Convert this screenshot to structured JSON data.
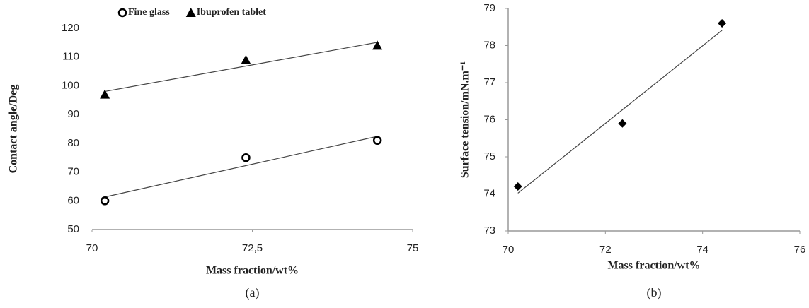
{
  "chart_data": [
    {
      "type": "scatter",
      "caption": "(a)",
      "xlabel": "Mass fraction/wt%",
      "ylabel": "Contact angle/Deg",
      "xlim": [
        70,
        75
      ],
      "xticks": [
        70,
        {
          "value": 72.5,
          "label": "72,5"
        },
        75
      ],
      "ylim": [
        50,
        120
      ],
      "yticks": [
        50,
        60,
        70,
        80,
        90,
        100,
        110,
        120
      ],
      "trendline": true,
      "left_axis": false,
      "series": [
        {
          "name": "Fine glass",
          "color": "#000000",
          "marker": "circle-open",
          "x": [
            70.2,
            72.4,
            74.45
          ],
          "values": [
            60,
            75,
            81
          ]
        },
        {
          "name": "Ibuprofen tablet",
          "color": "#000000",
          "marker": "triangle",
          "x": [
            70.2,
            72.4,
            74.45
          ],
          "values": [
            97,
            109,
            114
          ]
        }
      ]
    },
    {
      "type": "scatter",
      "caption": "(b)",
      "xlabel": "Mass fraction/wt%",
      "ylabel": "Surface tension/mN.m⁻¹",
      "xlim": [
        70,
        76
      ],
      "xticks": [
        70,
        72,
        74,
        76
      ],
      "ylim": [
        73,
        79
      ],
      "yticks": [
        73,
        74,
        75,
        76,
        77,
        78,
        79
      ],
      "trendline": true,
      "left_axis": true,
      "series": [
        {
          "color": "#000000",
          "marker": "diamond",
          "x": [
            70.2,
            72.35,
            74.4
          ],
          "values": [
            74.2,
            75.9,
            78.6
          ]
        }
      ]
    }
  ]
}
